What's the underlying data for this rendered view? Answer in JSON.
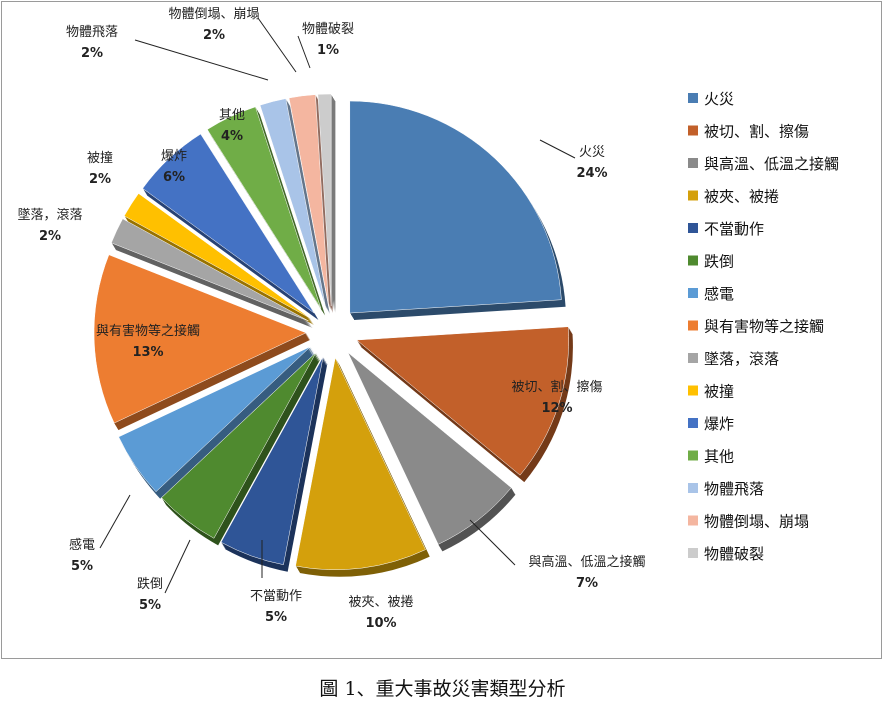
{
  "chart_data": {
    "type": "pie",
    "style": "3d-exploded",
    "start": "top, clockwise",
    "legend_position": "right",
    "categories": [
      "火災",
      "被切、割、擦傷",
      "與高溫、低溫之接觸",
      "被夾、被捲",
      "不當動作",
      "跌倒",
      "感電",
      "與有害物等之接觸",
      "墜落，滾落",
      "被撞",
      "爆炸",
      "其他",
      "物體飛落",
      "物體倒塌、崩塌",
      "物體破裂"
    ],
    "values": [
      24,
      12,
      7,
      10,
      5,
      5,
      5,
      13,
      2,
      2,
      6,
      4,
      2,
      2,
      1
    ],
    "value_labels": [
      "24%",
      "12%",
      "7%",
      "10%",
      "5%",
      "5%",
      "5%",
      "13%",
      "2%",
      "2%",
      "6%",
      "4%",
      "2%",
      "2%",
      "1%"
    ],
    "colors": [
      "#4a7db3",
      "#c2602a",
      "#8a8a8a",
      "#d4a00c",
      "#2f5597",
      "#4f8a2f",
      "#5b9bd5",
      "#ed7d31",
      "#a5a5a5",
      "#ffc000",
      "#4472c4",
      "#70ad47",
      "#a9c4e8",
      "#f4b6a0",
      "#cccccc"
    ]
  },
  "caption": "圖 1、重大事故災害類型分析"
}
